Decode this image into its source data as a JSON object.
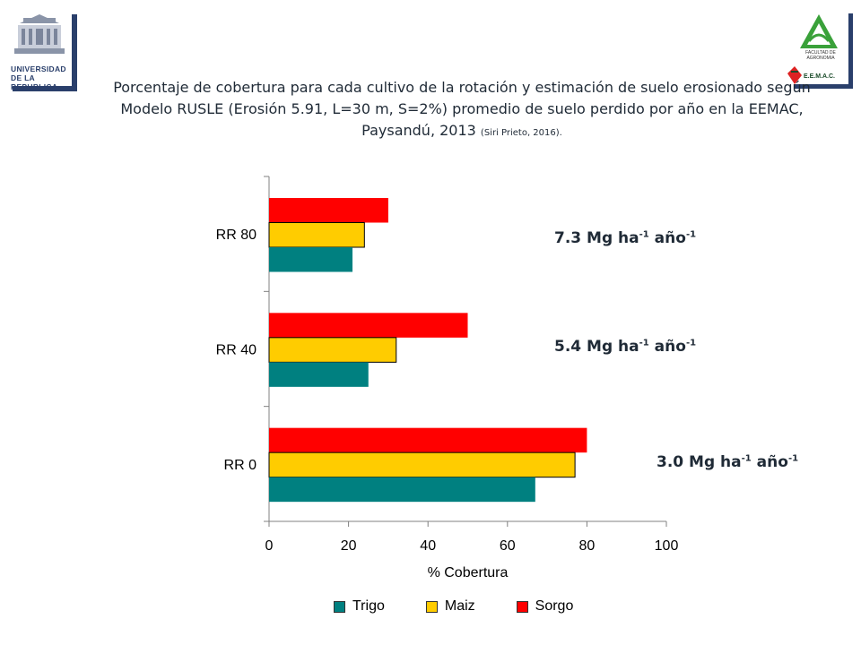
{
  "logos": {
    "udelar_text": "UNIVERSIDAD DE LA REPUBLICA",
    "fagro_text": "FACULTAD DE AGRONOMIA",
    "eemac_text": "E.E.M.A.C."
  },
  "title": {
    "main": "Porcentaje de cobertura para cada cultivo de la rotación y estimación de suelo erosionado según Modelo RUSLE (Erosión 5.91, L=30 m, S=2%) promedio de suelo perdido por año en la EEMAC, Paysandú, 2013",
    "citation": "(Siri Prieto, 2016)."
  },
  "colors": {
    "trigo": "#008080",
    "maiz": "#ffcc00",
    "sorgo": "#ff0000"
  },
  "rates": [
    {
      "category": "RR 80",
      "value": "7.3",
      "unit": "Mg ha",
      "exp1": "-1",
      "unit2": "año",
      "exp2": "-1"
    },
    {
      "category": "RR 40",
      "value": "5.4",
      "unit": "Mg ha",
      "exp1": "-1",
      "unit2": "año",
      "exp2": "-1"
    },
    {
      "category": "RR 0",
      "value": "3.0",
      "unit": "Mg ha",
      "exp1": "-1",
      "unit2": "año",
      "exp2": "-1"
    }
  ],
  "chart_data": {
    "type": "bar",
    "orientation": "horizontal",
    "categories": [
      "RR 80",
      "RR 40",
      "RR 0"
    ],
    "series": [
      {
        "name": "Sorgo",
        "values": [
          30,
          50,
          80
        ]
      },
      {
        "name": "Maiz",
        "values": [
          24,
          32,
          77
        ]
      },
      {
        "name": "Trigo",
        "values": [
          21,
          25,
          67
        ]
      }
    ],
    "xlabel": "% Cobertura",
    "ylabel": "",
    "xlim": [
      0,
      100
    ],
    "xticks": [
      0,
      20,
      40,
      60,
      80,
      100
    ],
    "grid": false,
    "legend": {
      "position": "bottom",
      "entries": [
        "Trigo",
        "Maiz",
        "Sorgo"
      ]
    }
  }
}
